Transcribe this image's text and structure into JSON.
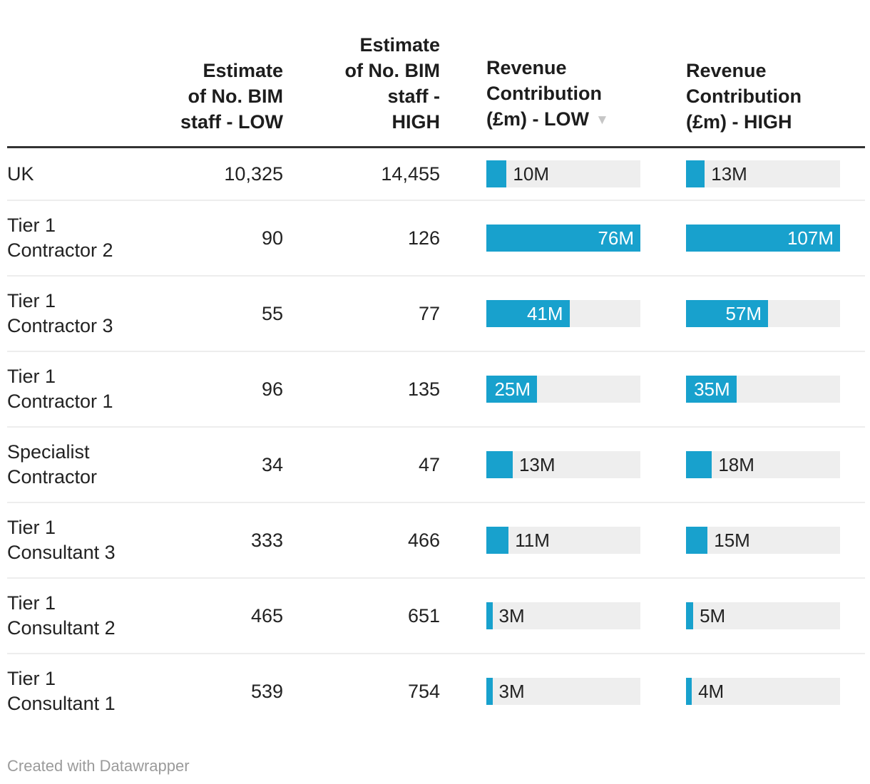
{
  "table": {
    "columns": [
      {
        "id": "entity",
        "display": ""
      },
      {
        "id": "staff_low",
        "display": "Estimate\nof No. BIM\nstaff - LOW"
      },
      {
        "id": "staff_high",
        "display": "Estimate\nof No. BIM\nstaff -\nHIGH"
      },
      {
        "id": "rev_low",
        "display": "Revenue\nContribution\n(£m) - LOW",
        "sort_indicator": "▼"
      },
      {
        "id": "rev_high",
        "display": "Revenue\nContribution\n(£m) - HIGH"
      }
    ],
    "rows": [
      {
        "label": "UK",
        "staff_low": "10,325",
        "staff_high": "14,455",
        "rev_low": 10,
        "rev_low_label": "10M",
        "rev_high": 13,
        "rev_high_label": "13M"
      },
      {
        "label": "Tier 1\nContractor 2",
        "staff_low": "90",
        "staff_high": "126",
        "rev_low": 76,
        "rev_low_label": "76M",
        "rev_high": 107,
        "rev_high_label": "107M"
      },
      {
        "label": "Tier 1\nContractor 3",
        "staff_low": "55",
        "staff_high": "77",
        "rev_low": 41,
        "rev_low_label": "41M",
        "rev_high": 57,
        "rev_high_label": "57M"
      },
      {
        "label": "Tier 1\nContractor 1",
        "staff_low": "96",
        "staff_high": "135",
        "rev_low": 25,
        "rev_low_label": "25M",
        "rev_high": 35,
        "rev_high_label": "35M"
      },
      {
        "label": "Specialist\nContractor",
        "staff_low": "34",
        "staff_high": "47",
        "rev_low": 13,
        "rev_low_label": "13M",
        "rev_high": 18,
        "rev_high_label": "18M"
      },
      {
        "label": "Tier 1\nConsultant 3",
        "staff_low": "333",
        "staff_high": "466",
        "rev_low": 11,
        "rev_low_label": "11M",
        "rev_high": 15,
        "rev_high_label": "15M"
      },
      {
        "label": "Tier 1\nConsultant 2",
        "staff_low": "465",
        "staff_high": "651",
        "rev_low": 3,
        "rev_low_label": "3M",
        "rev_high": 5,
        "rev_high_label": "5M"
      },
      {
        "label": "Tier 1\nConsultant 1",
        "staff_low": "539",
        "staff_high": "754",
        "rev_low": 3,
        "rev_low_label": "3M",
        "rev_high": 4,
        "rev_high_label": "4M"
      }
    ]
  },
  "chart_data": {
    "type": "table",
    "title": "",
    "columns": [
      "",
      "Estimate of No. BIM staff - LOW",
      "Estimate of No. BIM staff - HIGH",
      "Revenue Contribution (£m) - LOW",
      "Revenue Contribution (£m) - HIGH"
    ],
    "rows": [
      [
        "UK",
        10325,
        14455,
        10,
        13
      ],
      [
        "Tier 1 Contractor 2",
        90,
        126,
        76,
        107
      ],
      [
        "Tier 1 Contractor 3",
        55,
        77,
        41,
        57
      ],
      [
        "Tier 1 Contractor 1",
        96,
        135,
        25,
        35
      ],
      [
        "Specialist Contractor",
        34,
        47,
        13,
        18
      ],
      [
        "Tier 1 Consultant 3",
        333,
        466,
        11,
        15
      ],
      [
        "Tier 1 Consultant 2",
        465,
        651,
        3,
        5
      ],
      [
        "Tier 1 Consultant 1",
        539,
        754,
        3,
        4
      ]
    ],
    "bar_columns": [
      {
        "column": "Revenue Contribution (£m) - LOW",
        "unit": "M",
        "values": [
          10,
          76,
          41,
          25,
          13,
          11,
          3,
          3
        ],
        "max": 76
      },
      {
        "column": "Revenue Contribution (£m) - HIGH",
        "unit": "M",
        "values": [
          13,
          107,
          57,
          35,
          18,
          15,
          5,
          4
        ],
        "max": 107
      }
    ],
    "sorted_by": "Revenue Contribution (£m) - LOW",
    "sort_direction": "descending"
  },
  "footer": {
    "credit": "Created with Datawrapper"
  },
  "colors": {
    "bar_fill": "#18a1cd",
    "bar_track": "#eeeeee",
    "header_text": "#1d1d1d",
    "body_text": "#222222",
    "rule_dark": "#333333",
    "rule_light": "#ededed",
    "credit_text": "#9b9b9b",
    "sort_arrow": "#c6c6c6"
  }
}
